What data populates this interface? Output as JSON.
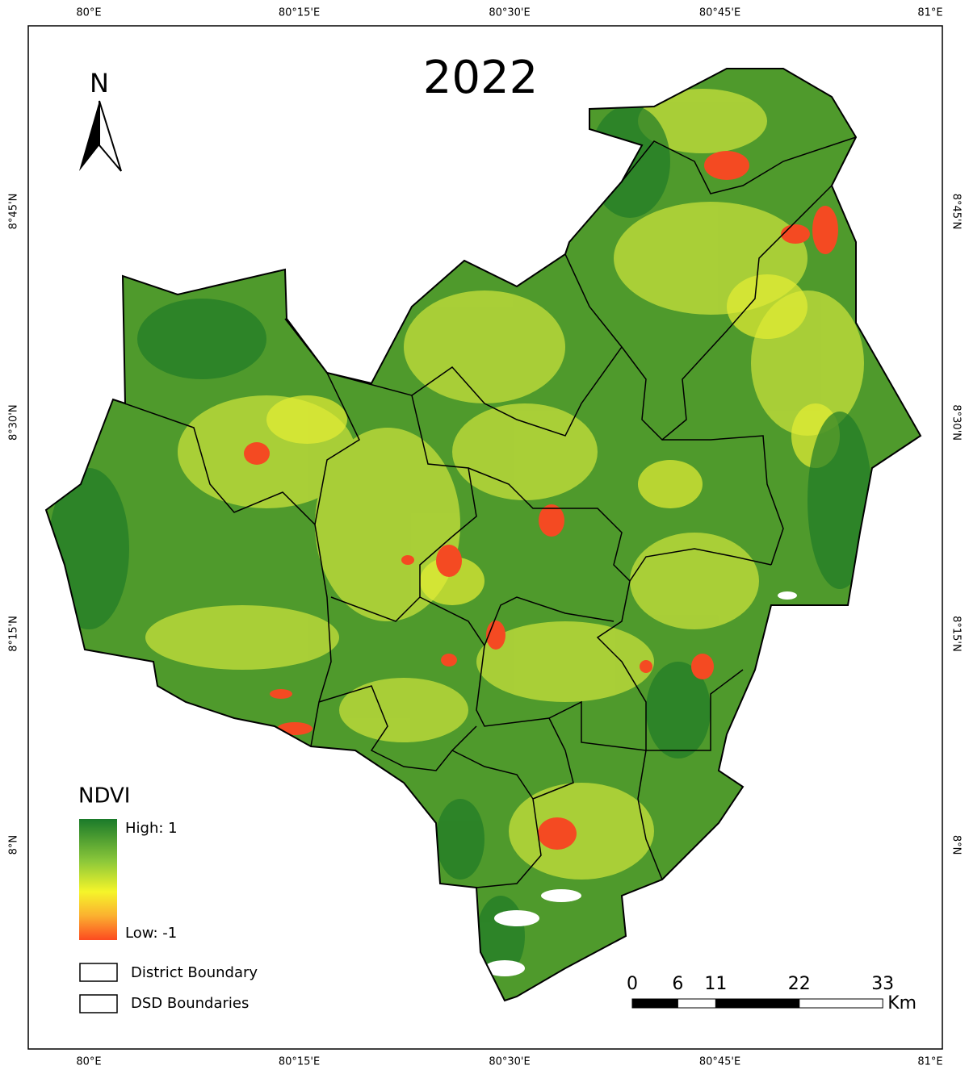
{
  "map": {
    "title": "2022",
    "north": "N",
    "top_labels": [
      "80°E",
      "80°15'E",
      "80°30'E",
      "80°45'E",
      "81°E"
    ],
    "bottom_labels": [
      "80°E",
      "80°15'E",
      "80°30'E",
      "80°45'E",
      "81°E"
    ],
    "left_labels": [
      "8°45'N",
      "8°30'N",
      "8°15'N",
      "8°N"
    ],
    "right_labels": [
      "8°45'N",
      "8°30'N",
      "8°15'N",
      "8°N"
    ],
    "legend": {
      "title": "NDVI",
      "high": "High: 1",
      "low": "Low: -1",
      "district": "District Boundary",
      "dsd": "DSD Boundaries"
    },
    "scale_bar": {
      "ticks": [
        0,
        6,
        11,
        22,
        33
      ],
      "unit": "Km"
    }
  }
}
